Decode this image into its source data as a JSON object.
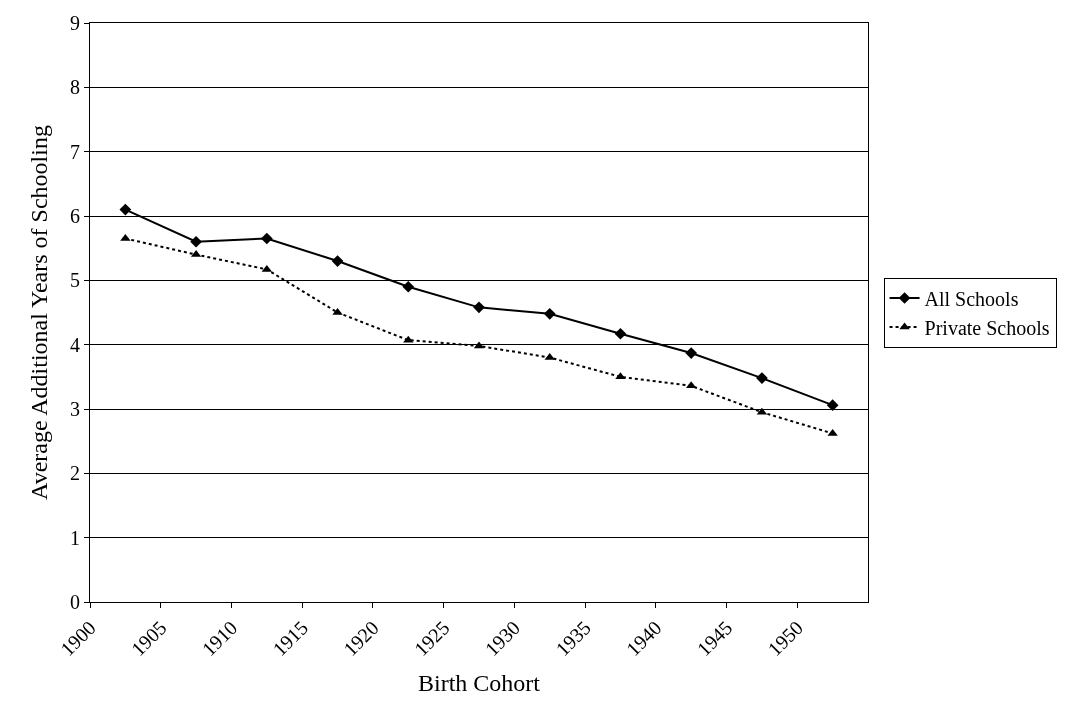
{
  "chart_data": {
    "type": "line",
    "xlabel": "Birth Cohort",
    "ylabel": "Average Additional Years of Schooling",
    "x": [
      1902.5,
      1907.5,
      1912.5,
      1917.5,
      1922.5,
      1927.5,
      1932.5,
      1937.5,
      1942.5,
      1947.5,
      1952.5
    ],
    "series": [
      {
        "name": "All Schools",
        "color": "#000000",
        "marker": "diamond",
        "line_style": "solid",
        "values": [
          6.1,
          5.6,
          5.65,
          5.3,
          4.9,
          4.58,
          4.48,
          4.17,
          3.87,
          3.48,
          3.06
        ]
      },
      {
        "name": "Private Schools",
        "color": "#000000",
        "marker": "triangle",
        "line_style": "dotted",
        "values": [
          5.65,
          5.4,
          5.17,
          4.5,
          4.07,
          3.98,
          3.8,
          3.5,
          3.36,
          2.95,
          2.62
        ]
      }
    ],
    "xlim": [
      1900,
      1955
    ],
    "xticks": [
      1900,
      1905,
      1910,
      1915,
      1920,
      1925,
      1930,
      1935,
      1940,
      1945,
      1950
    ],
    "ylim": [
      0,
      9
    ],
    "yticks": [
      0,
      1,
      2,
      3,
      4,
      5,
      6,
      7,
      8,
      9
    ],
    "grid": "y",
    "legend": "right"
  }
}
